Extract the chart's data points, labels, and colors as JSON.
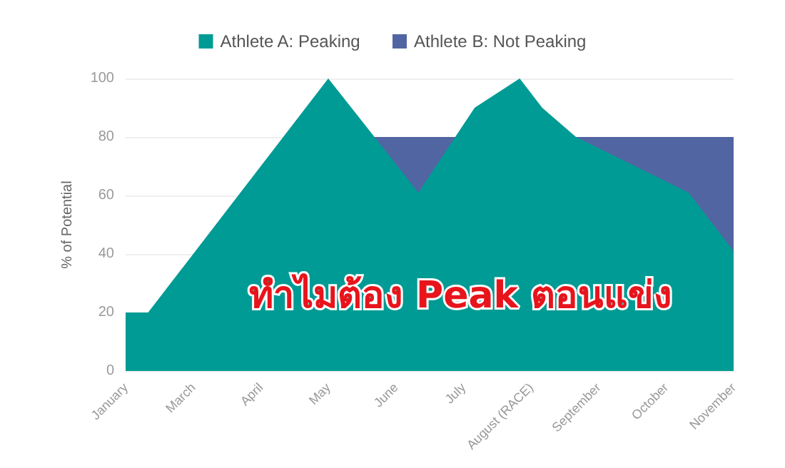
{
  "chart_data": {
    "type": "area",
    "ylabel": "% of Potential",
    "annotations": [
      "ทำไมต้อง Peak ตอนแข่ง"
    ],
    "categories": [
      "January",
      null,
      null,
      null,
      null,
      null,
      "March",
      null,
      null,
      null,
      null,
      null,
      "April",
      null,
      null,
      null,
      null,
      null,
      "May",
      null,
      null,
      null,
      null,
      null,
      "June",
      null,
      null,
      null,
      null,
      null,
      "July",
      null,
      null,
      null,
      null,
      null,
      "August (RACE)",
      null,
      null,
      null,
      null,
      null,
      "September",
      null,
      null,
      null,
      null,
      null,
      "October",
      null,
      null,
      null,
      null,
      null,
      "November"
    ],
    "ylim": [
      0,
      100
    ],
    "yticks": [
      0,
      20,
      40,
      60,
      80,
      100
    ],
    "grid": "y",
    "legend": "top",
    "series": [
      {
        "name": "Athlete A: Peaking",
        "color": "#009b94",
        "values": [
          20,
          null,
          20,
          null,
          null,
          null,
          null,
          null,
          null,
          null,
          null,
          null,
          null,
          null,
          null,
          null,
          null,
          null,
          100,
          null,
          null,
          null,
          null,
          null,
          null,
          null,
          61,
          null,
          null,
          null,
          null,
          90,
          null,
          null,
          null,
          100,
          null,
          90,
          null,
          null,
          80,
          null,
          null,
          null,
          null,
          null,
          null,
          null,
          null,
          null,
          61,
          null,
          null,
          null,
          41
        ]
      },
      {
        "name": "Athlete B: Not Peaking",
        "color": "#5265a3",
        "values": [
          null,
          null,
          null,
          null,
          null,
          null,
          null,
          null,
          null,
          null,
          null,
          null,
          null,
          null,
          null,
          null,
          null,
          null,
          null,
          null,
          null,
          null,
          80,
          null,
          null,
          null,
          null,
          null,
          null,
          null,
          null,
          null,
          null,
          null,
          null,
          null,
          null,
          null,
          null,
          null,
          null,
          null,
          null,
          null,
          null,
          null,
          null,
          null,
          null,
          null,
          null,
          null,
          null,
          null,
          80
        ]
      }
    ]
  }
}
